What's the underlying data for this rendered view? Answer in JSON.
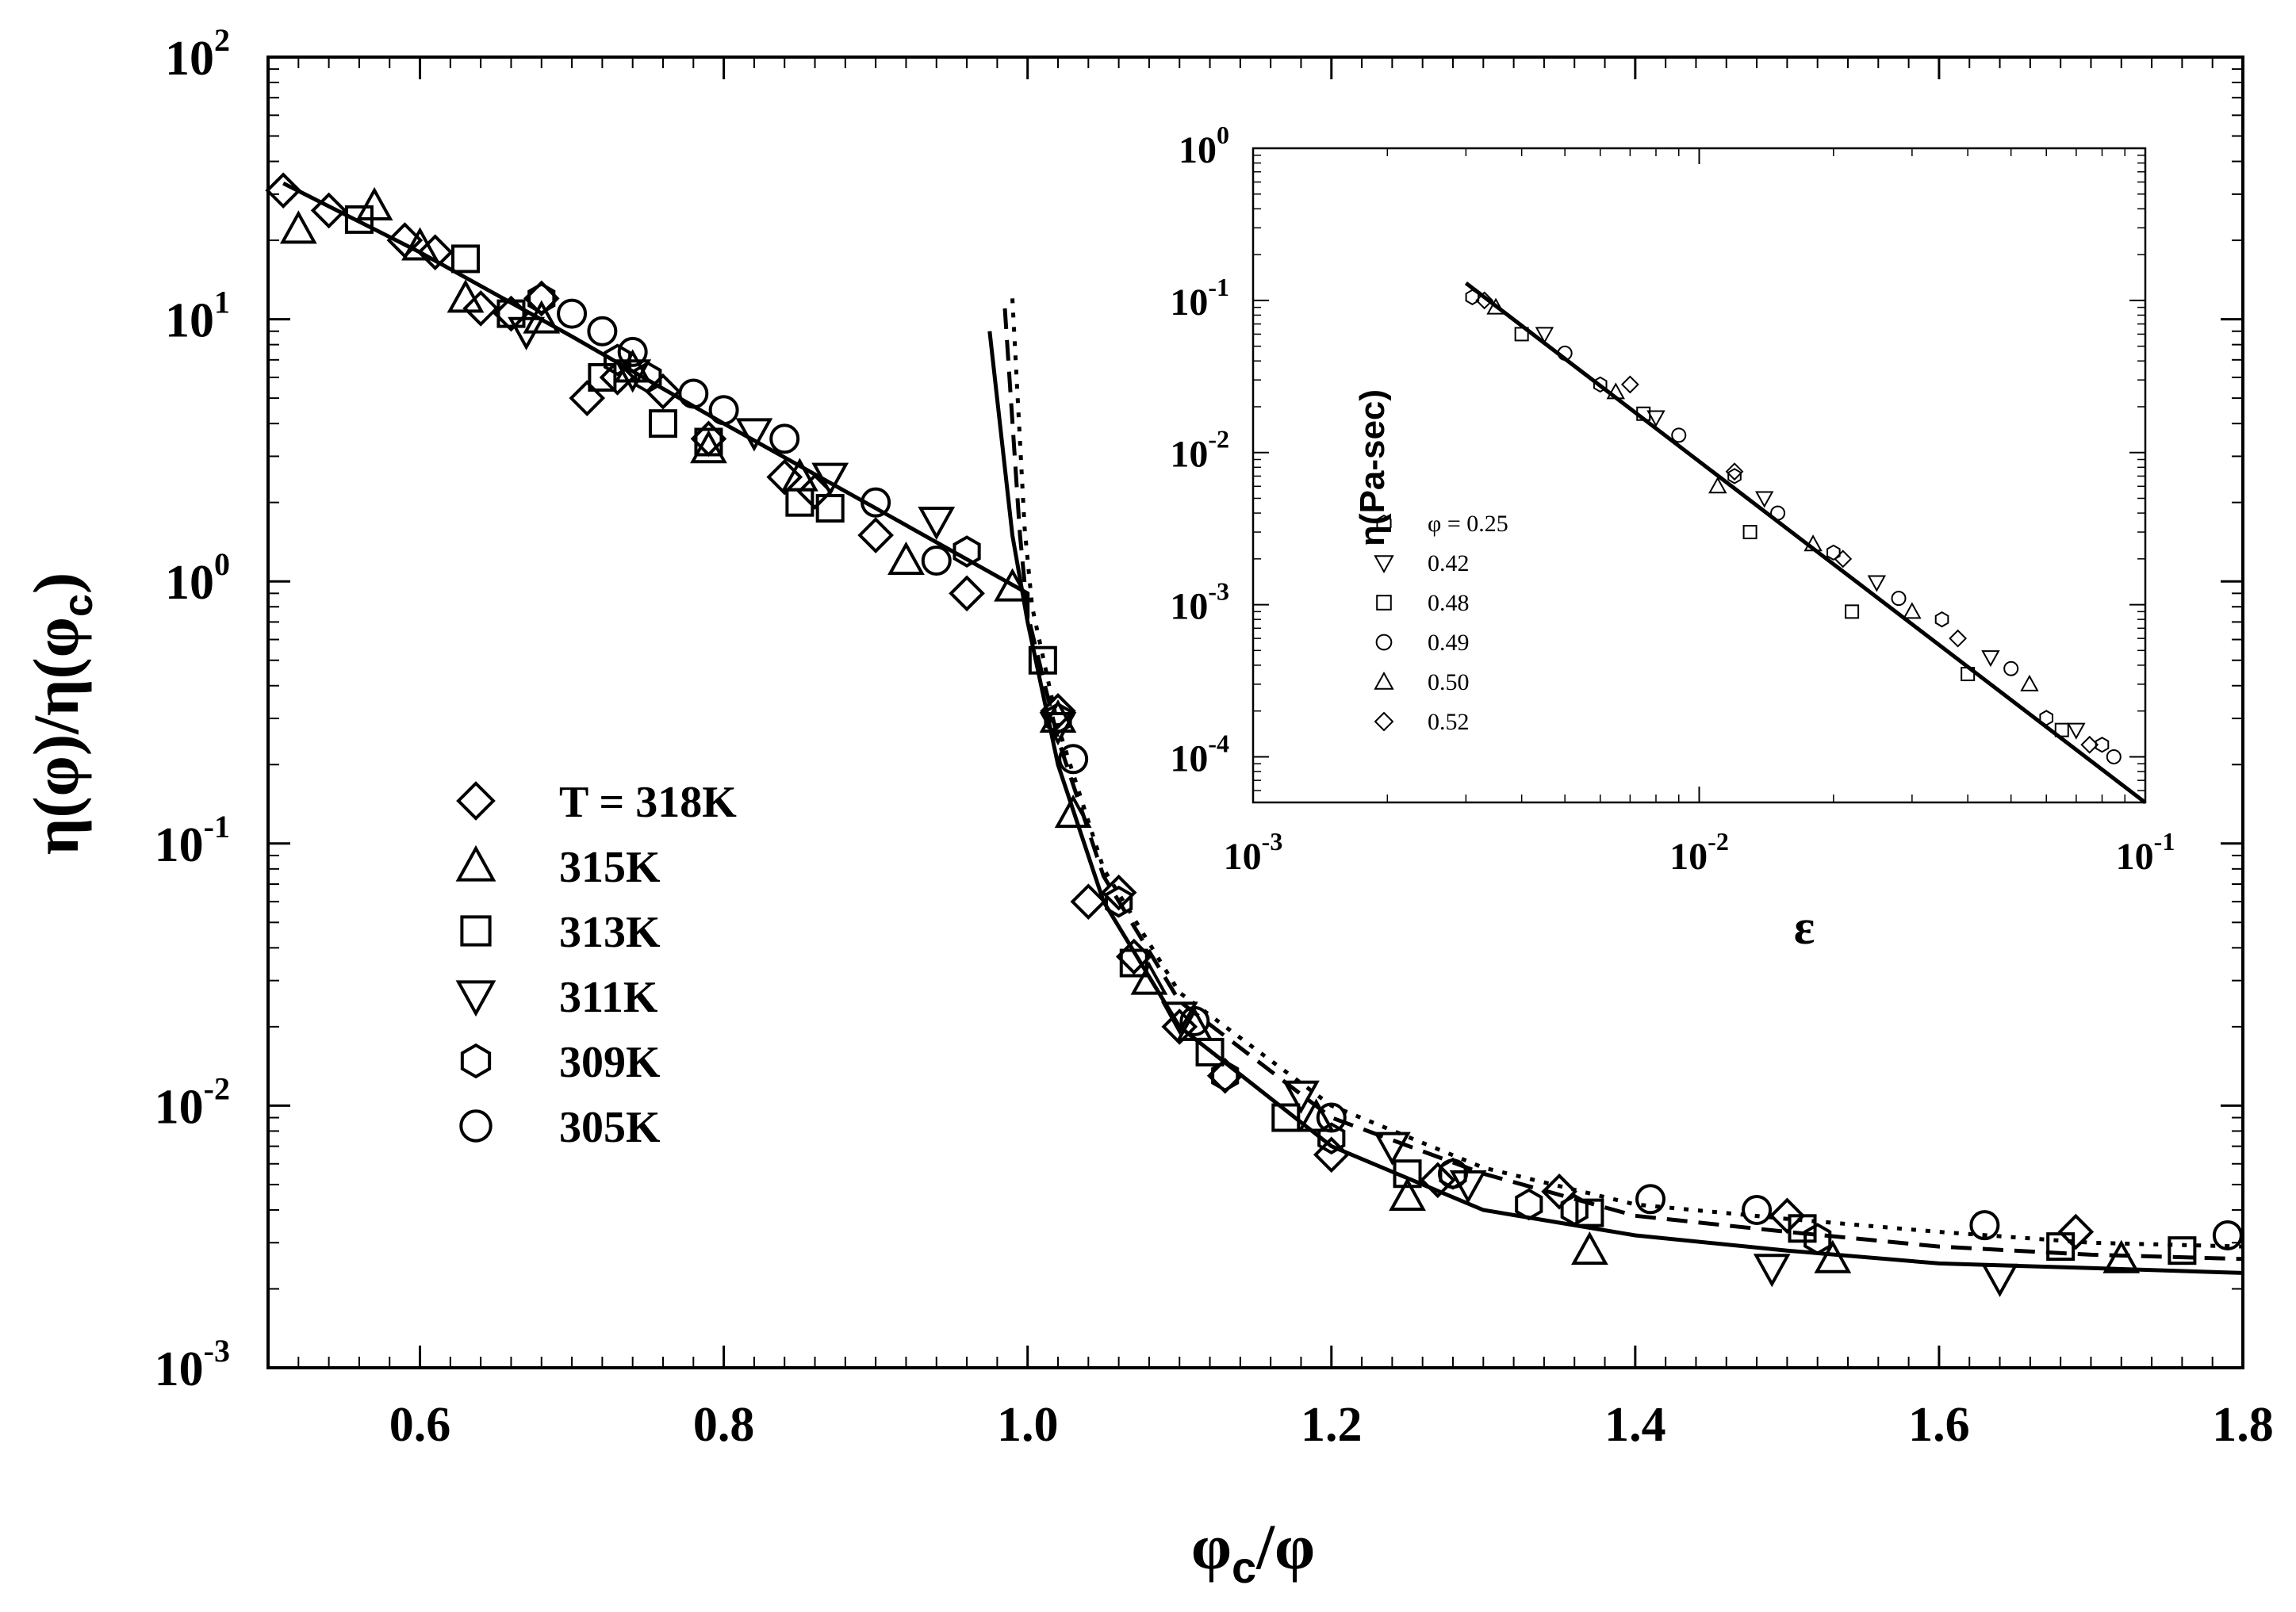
{
  "chart_data": [
    {
      "type": "scatter",
      "title": "",
      "xlabel": "φc/φ",
      "ylabel": "η(φ)/η(φc)",
      "xscale": "linear",
      "yscale": "log",
      "xlim": [
        0.5,
        1.8
      ],
      "ylim": [
        0.001,
        100
      ],
      "x_ticks": [
        "0.6",
        "0.8",
        "1.0",
        "1.2",
        "1.4",
        "1.6",
        "1.8"
      ],
      "y_ticks": [
        {
          "base": "10",
          "exp": "2"
        },
        {
          "base": "10",
          "exp": "1"
        },
        {
          "base": "10",
          "exp": "0"
        },
        {
          "base": "10",
          "exp": "-1"
        },
        {
          "base": "10",
          "exp": "-2"
        },
        {
          "base": "10",
          "exp": "-3"
        }
      ],
      "legend_placement": "center-left",
      "series": [
        {
          "name": "T =  318K",
          "marker": "diamond",
          "points": [
            [
              0.51,
              31
            ],
            [
              0.54,
              26
            ],
            [
              0.59,
              20
            ],
            [
              0.61,
              18
            ],
            [
              0.64,
              11
            ],
            [
              0.66,
              10.5
            ],
            [
              0.68,
              12
            ],
            [
              0.71,
              5
            ],
            [
              0.73,
              6
            ],
            [
              0.76,
              5.3
            ],
            [
              0.79,
              3.5
            ],
            [
              0.84,
              2.5
            ],
            [
              0.86,
              2.2
            ],
            [
              0.9,
              1.5
            ],
            [
              0.96,
              0.9
            ],
            [
              1.02,
              0.32
            ],
            [
              1.04,
              0.06
            ],
            [
              1.06,
              0.065
            ],
            [
              1.07,
              0.037
            ],
            [
              1.1,
              0.02
            ],
            [
              1.13,
              0.013
            ],
            [
              1.2,
              0.0065
            ],
            [
              1.27,
              0.0052
            ],
            [
              1.35,
              0.0047
            ],
            [
              1.5,
              0.0038
            ],
            [
              1.69,
              0.0033
            ]
          ]
        },
        {
          "name": "315K",
          "marker": "triangle-up",
          "points": [
            [
              0.52,
              22
            ],
            [
              0.57,
              27
            ],
            [
              0.6,
              19
            ],
            [
              0.63,
              12
            ],
            [
              0.68,
              10
            ],
            [
              0.74,
              6.5
            ],
            [
              0.79,
              3.2
            ],
            [
              0.85,
              2.5
            ],
            [
              0.92,
              1.2
            ],
            [
              0.99,
              0.95
            ],
            [
              1.02,
              0.3
            ],
            [
              1.03,
              0.13
            ],
            [
              1.08,
              0.03
            ],
            [
              1.11,
              0.02
            ],
            [
              1.19,
              0.009
            ],
            [
              1.25,
              0.0045
            ],
            [
              1.37,
              0.0028
            ],
            [
              1.53,
              0.0026
            ],
            [
              1.72,
              0.0026
            ]
          ]
        },
        {
          "name": "313K",
          "marker": "square",
          "points": [
            [
              0.56,
              24
            ],
            [
              0.63,
              17
            ],
            [
              0.66,
              10.5
            ],
            [
              0.72,
              6
            ],
            [
              0.76,
              4
            ],
            [
              0.79,
              3.4
            ],
            [
              0.85,
              2
            ],
            [
              0.87,
              1.9
            ],
            [
              1.01,
              0.5
            ],
            [
              1.07,
              0.035
            ],
            [
              1.12,
              0.016
            ],
            [
              1.17,
              0.009
            ],
            [
              1.25,
              0.0055
            ],
            [
              1.37,
              0.0039
            ],
            [
              1.51,
              0.0034
            ],
            [
              1.68,
              0.0029
            ],
            [
              1.76,
              0.0028
            ]
          ]
        },
        {
          "name": "311K",
          "marker": "triangle-down",
          "points": [
            [
              0.67,
              9
            ],
            [
              0.74,
              6.2
            ],
            [
              0.82,
              3.7
            ],
            [
              0.87,
              2.5
            ],
            [
              0.94,
              1.7
            ],
            [
              1.02,
              0.28
            ],
            [
              1.1,
              0.022
            ],
            [
              1.18,
              0.011
            ],
            [
              1.24,
              0.007
            ],
            [
              1.29,
              0.005
            ],
            [
              1.49,
              0.0024
            ],
            [
              1.64,
              0.0022
            ]
          ]
        },
        {
          "name": "309K",
          "marker": "hexagon",
          "points": [
            [
              0.68,
              12
            ],
            [
              0.73,
              7
            ],
            [
              0.75,
              6
            ],
            [
              0.96,
              1.3
            ],
            [
              1.02,
              0.3
            ],
            [
              1.06,
              0.06
            ],
            [
              1.13,
              0.013
            ],
            [
              1.2,
              0.0075
            ],
            [
              1.28,
              0.0055
            ],
            [
              1.33,
              0.0042
            ],
            [
              1.36,
              0.004
            ],
            [
              1.52,
              0.0031
            ]
          ]
        },
        {
          "name": "305K",
          "marker": "circle",
          "points": [
            [
              0.7,
              10.5
            ],
            [
              0.72,
              9
            ],
            [
              0.74,
              7.5
            ],
            [
              0.78,
              5.2
            ],
            [
              0.8,
              4.5
            ],
            [
              0.84,
              3.5
            ],
            [
              0.9,
              2
            ],
            [
              0.94,
              1.2
            ],
            [
              1.03,
              0.21
            ],
            [
              1.11,
              0.021
            ],
            [
              1.2,
              0.009
            ],
            [
              1.28,
              0.0055
            ],
            [
              1.41,
              0.0044
            ],
            [
              1.48,
              0.004
            ],
            [
              1.63,
              0.0035
            ],
            [
              1.79,
              0.0032
            ]
          ]
        }
      ],
      "fit_lines": [
        {
          "style": "solid",
          "points": [
            [
              0.51,
              33
            ],
            [
              0.6,
              18
            ],
            [
              0.7,
              8.6
            ],
            [
              0.8,
              4
            ],
            [
              0.9,
              1.9
            ],
            [
              1.0,
              0.9
            ],
            [
              1.0,
              0.72
            ]
          ]
        },
        {
          "style": "solid",
          "points": [
            [
              0.975,
              9
            ],
            [
              0.99,
              1.5
            ],
            [
              1.0,
              0.7
            ],
            [
              1.02,
              0.2
            ],
            [
              1.05,
              0.06
            ],
            [
              1.1,
              0.02
            ],
            [
              1.2,
              0.007
            ],
            [
              1.3,
              0.004
            ],
            [
              1.4,
              0.0032
            ],
            [
              1.5,
              0.0028
            ],
            [
              1.6,
              0.0025
            ],
            [
              1.7,
              0.0024
            ],
            [
              1.8,
              0.0023
            ]
          ]
        },
        {
          "style": "dashed",
          "points": [
            [
              0.985,
              11
            ],
            [
              0.995,
              1.5
            ],
            [
              1.0,
              0.75
            ],
            [
              1.02,
              0.25
            ],
            [
              1.05,
              0.075
            ],
            [
              1.1,
              0.025
            ],
            [
              1.2,
              0.009
            ],
            [
              1.3,
              0.0055
            ],
            [
              1.4,
              0.0038
            ],
            [
              1.5,
              0.0033
            ],
            [
              1.6,
              0.0029
            ],
            [
              1.7,
              0.0027
            ],
            [
              1.8,
              0.0026
            ]
          ]
        },
        {
          "style": "dotted",
          "points": [
            [
              0.99,
              12
            ],
            [
              0.998,
              1.6
            ],
            [
              1.003,
              0.8
            ],
            [
              1.02,
              0.28
            ],
            [
              1.05,
              0.08
            ],
            [
              1.1,
              0.027
            ],
            [
              1.2,
              0.01
            ],
            [
              1.3,
              0.0058
            ],
            [
              1.4,
              0.0042
            ],
            [
              1.5,
              0.0037
            ],
            [
              1.6,
              0.0033
            ],
            [
              1.7,
              0.003
            ],
            [
              1.8,
              0.0029
            ]
          ]
        }
      ],
      "legend": {
        "entries": [
          "T =  318K",
          "315K",
          "313K",
          "311K",
          "309K",
          "305K"
        ]
      }
    },
    {
      "type": "scatter",
      "title": "",
      "xlabel": "ε",
      "ylabel": "η(Pa-sec)",
      "xscale": "log",
      "yscale": "log",
      "xlim": [
        0.001,
        0.1
      ],
      "ylim": [
        5e-05,
        1
      ],
      "x_ticks": [
        {
          "base": "10",
          "exp": "-3"
        },
        {
          "base": "10",
          "exp": "-2"
        },
        {
          "base": "10",
          "exp": "-1"
        }
      ],
      "y_ticks": [
        {
          "base": "10",
          "exp": "0"
        },
        {
          "base": "10",
          "exp": "-1"
        },
        {
          "base": "10",
          "exp": "-2"
        },
        {
          "base": "10",
          "exp": "-3"
        },
        {
          "base": "10",
          "exp": "-4"
        }
      ],
      "legend_placement": "left",
      "legend": {
        "entries": [
          "φ = 0.25",
          "0.42",
          "0.48",
          "0.49",
          "0.50",
          "0.52"
        ]
      },
      "series": [
        {
          "name": "φ = 0.25",
          "marker": "hexagon",
          "points": [
            [
              0.0031,
              0.105
            ],
            [
              0.006,
              0.028
            ],
            [
              0.012,
              0.007
            ],
            [
              0.02,
              0.0022
            ],
            [
              0.035,
              0.0008
            ],
            [
              0.06,
              0.00018
            ],
            [
              0.08,
              0.00012
            ]
          ]
        },
        {
          "name": "0.42",
          "marker": "triangle-down",
          "points": [
            [
              0.0045,
              0.06
            ],
            [
              0.008,
              0.017
            ],
            [
              0.014,
              0.005
            ],
            [
              0.025,
              0.0014
            ],
            [
              0.045,
              0.00045
            ],
            [
              0.07,
              0.00015
            ]
          ]
        },
        {
          "name": "0.48",
          "marker": "square",
          "points": [
            [
              0.004,
              0.06
            ],
            [
              0.0075,
              0.018
            ],
            [
              0.013,
              0.003
            ],
            [
              0.022,
              0.0009
            ],
            [
              0.04,
              0.00035
            ],
            [
              0.065,
              0.00015
            ]
          ]
        },
        {
          "name": "0.49",
          "marker": "circle",
          "points": [
            [
              0.005,
              0.045
            ],
            [
              0.009,
              0.013
            ],
            [
              0.015,
              0.004
            ],
            [
              0.028,
              0.0011
            ],
            [
              0.05,
              0.00038
            ],
            [
              0.085,
              0.0001
            ]
          ]
        },
        {
          "name": "0.50",
          "marker": "triangle-up",
          "points": [
            [
              0.0035,
              0.09
            ],
            [
              0.0065,
              0.025
            ],
            [
              0.011,
              0.006
            ],
            [
              0.018,
              0.0025
            ],
            [
              0.03,
              0.0009
            ],
            [
              0.055,
              0.0003
            ]
          ]
        },
        {
          "name": "0.52",
          "marker": "diamond",
          "points": [
            [
              0.0033,
              0.1
            ],
            [
              0.007,
              0.028
            ],
            [
              0.012,
              0.0075
            ],
            [
              0.021,
              0.002
            ],
            [
              0.038,
              0.0006
            ],
            [
              0.075,
              0.00012
            ]
          ]
        }
      ],
      "fit_lines": [
        {
          "style": "solid",
          "points": [
            [
              0.003,
              0.13
            ],
            [
              0.1,
              5e-05
            ]
          ]
        }
      ]
    }
  ]
}
